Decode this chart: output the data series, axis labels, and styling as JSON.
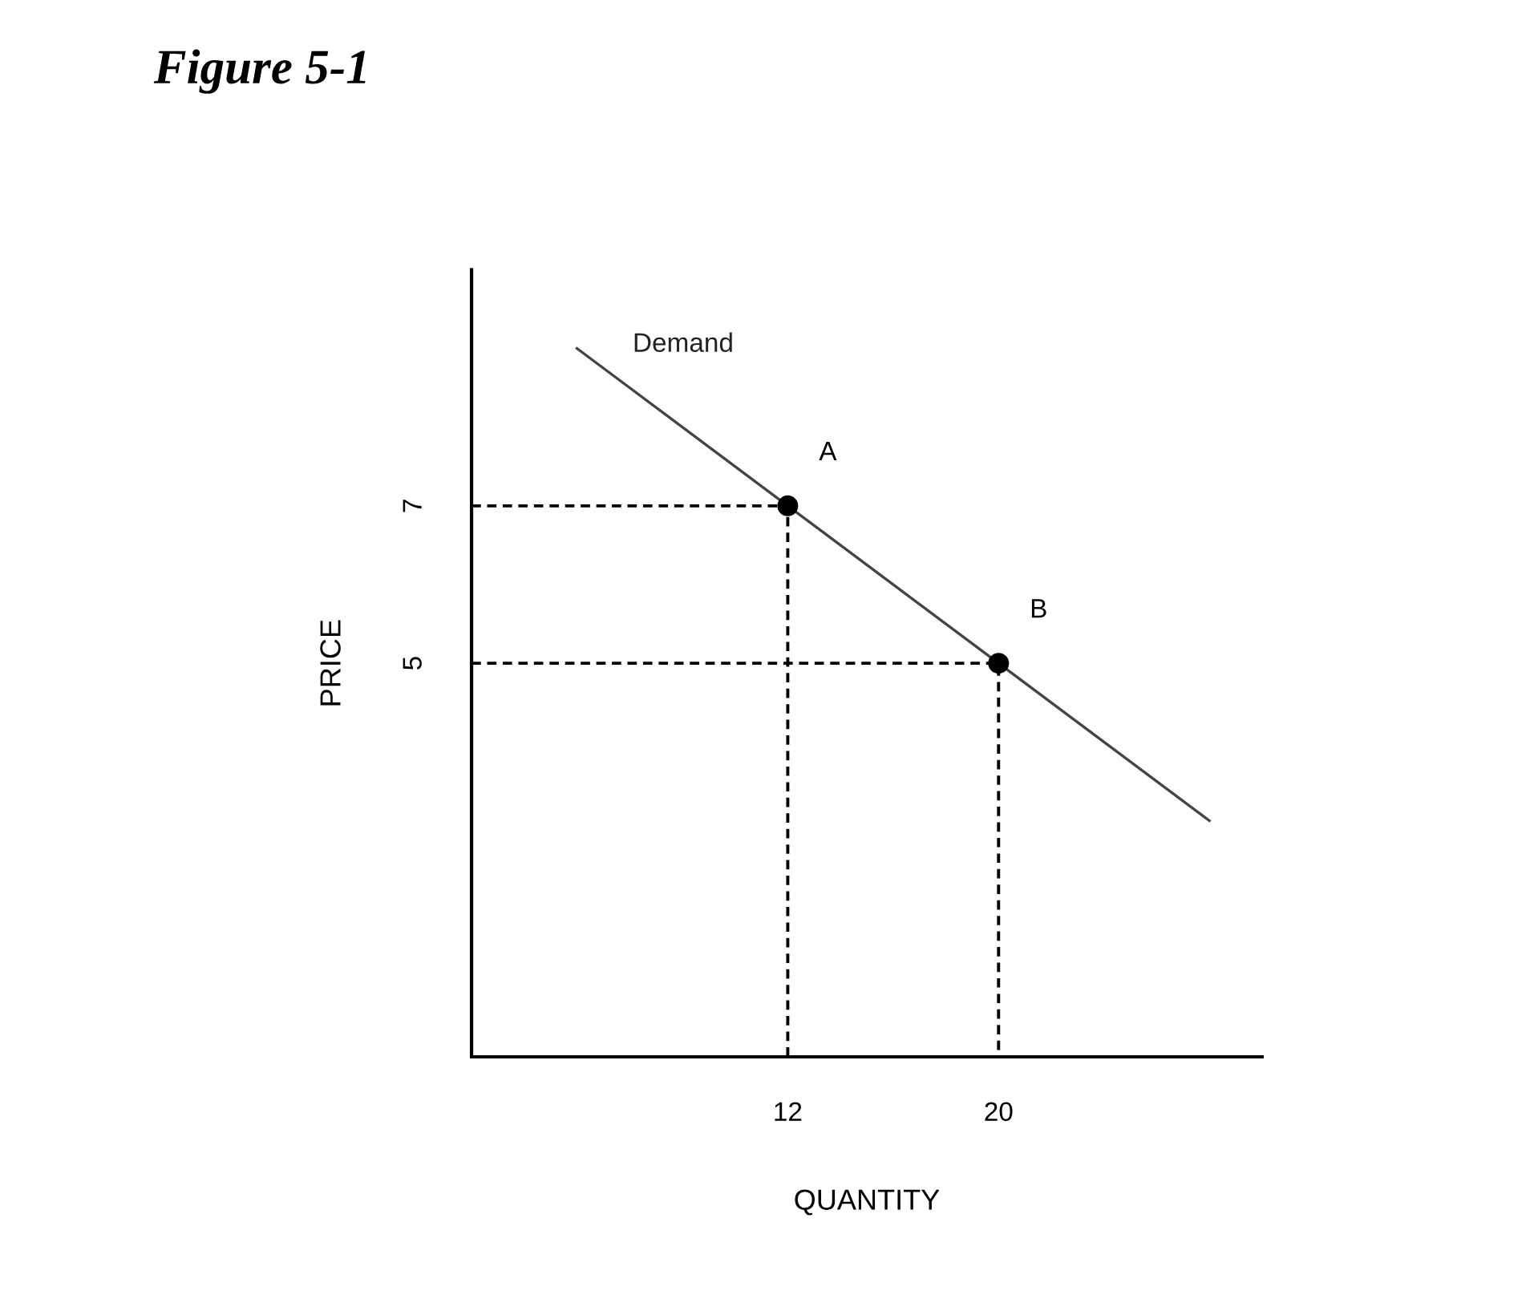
{
  "chart_data": {
    "type": "line",
    "title": "Figure 5-1",
    "xlabel": "QUANTITY",
    "ylabel": "PRICE",
    "xlim": [
      0,
      30
    ],
    "ylim": [
      0,
      10
    ],
    "xticks": [
      12,
      20
    ],
    "yticks": [
      5,
      7
    ],
    "grid": false,
    "legend": false,
    "series": [
      {
        "name": "Demand",
        "color": "#444444",
        "x": [
          4,
          12,
          20,
          28
        ],
        "values": [
          9,
          7,
          5,
          3
        ],
        "line_style": "solid"
      },
      {
        "type": "scatter",
        "color": "#000000",
        "x": [
          12,
          20
        ],
        "values": [
          7,
          5
        ],
        "marker": "circle"
      },
      {
        "color": "#000000",
        "x": [
          0,
          12,
          12
        ],
        "values": [
          7,
          7,
          0
        ],
        "line_style": "dashed"
      },
      {
        "color": "#000000",
        "x": [
          0,
          20,
          20
        ],
        "values": [
          5,
          5,
          0
        ],
        "line_style": "dashed"
      }
    ],
    "annotations": [
      {
        "text": "A",
        "x": 12,
        "y": 7
      },
      {
        "text": "B",
        "x": 20,
        "y": 5
      }
    ]
  }
}
